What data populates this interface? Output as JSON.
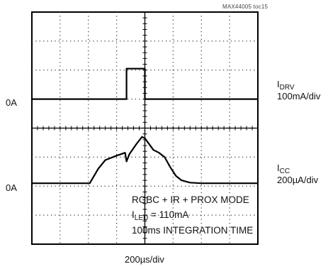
{
  "chart_data": {
    "type": "line",
    "figure_id": "MAX44005 toc15",
    "x_axis": {
      "label": "200µs/div",
      "divisions": 8
    },
    "y_axis": {
      "divisions": 8
    },
    "grid": true,
    "series": [
      {
        "name": "IDRV",
        "scale": "100mA/div",
        "zero_label": "0A",
        "baseline_div": 5,
        "points": [
          [
            0,
            0
          ],
          [
            3.35,
            0
          ],
          [
            3.35,
            1.05
          ],
          [
            4.0,
            1.05
          ],
          [
            4.0,
            0
          ],
          [
            8,
            0
          ]
        ]
      },
      {
        "name": "ICC",
        "scale": "200µA/div",
        "zero_label": "0A",
        "baseline_div": 2.1,
        "points": [
          [
            0,
            0
          ],
          [
            2.05,
            0
          ],
          [
            2.35,
            0.5
          ],
          [
            2.6,
            0.8
          ],
          [
            3.0,
            0.95
          ],
          [
            3.3,
            1.05
          ],
          [
            3.35,
            0.75
          ],
          [
            3.45,
            1.0
          ],
          [
            3.7,
            1.35
          ],
          [
            3.9,
            1.6
          ],
          [
            4.0,
            1.55
          ],
          [
            4.3,
            1.15
          ],
          [
            4.5,
            1.05
          ],
          [
            4.7,
            0.9
          ],
          [
            4.9,
            0.55
          ],
          [
            5.1,
            0.25
          ],
          [
            5.3,
            0.1
          ],
          [
            5.6,
            0.02
          ],
          [
            6.0,
            0
          ],
          [
            8,
            0
          ]
        ]
      }
    ]
  },
  "labels": {
    "part_number": "MAX44005 toc15",
    "idrv_name": "I",
    "idrv_sub": "DRV",
    "idrv_scale": "100mA/div",
    "icc_name": "I",
    "icc_sub": "CC",
    "icc_scale": "200µA/div",
    "zero_top": "0A",
    "zero_bottom": "0A",
    "xscale": "200µs/div"
  },
  "annotation": {
    "line1": "RGBC + IR + PROX MODE",
    "line2_pre": "I",
    "line2_sub": "LED",
    "line2_post": " = 110mA",
    "line3": "100ms INTEGRATION TIME"
  }
}
